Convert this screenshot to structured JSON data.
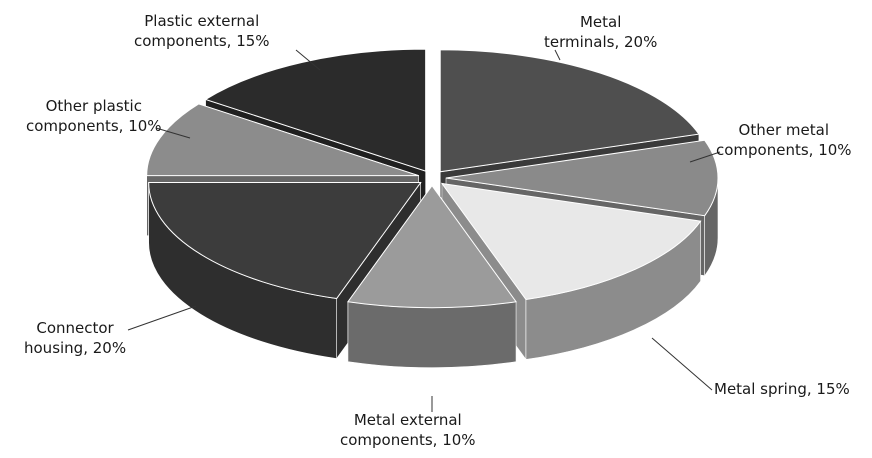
{
  "chart_data": {
    "type": "pie",
    "title": "",
    "series": [
      {
        "name": "Metal terminals",
        "lines": [
          "Metal",
          "terminals, 20%"
        ],
        "value": 20,
        "color": "#4f4f4f",
        "side": "#3a3a3a"
      },
      {
        "name": "Other metal components",
        "lines": [
          "Other metal",
          "components, 10%"
        ],
        "value": 10,
        "color": "#8a8a8a",
        "side": "#666666"
      },
      {
        "name": "Metal spring",
        "lines": [
          "Metal spring, 15%"
        ],
        "value": 15,
        "color": "#e8e8e8",
        "side": "#8c8c8c"
      },
      {
        "name": "Metal external components",
        "lines": [
          "Metal external",
          "components, 10%"
        ],
        "value": 10,
        "color": "#9b9b9b",
        "side": "#6b6b6b"
      },
      {
        "name": "Connector housing",
        "lines": [
          "Connector",
          "housing, 20%"
        ],
        "value": 20,
        "color": "#3c3c3c",
        "side": "#2e2e2e"
      },
      {
        "name": "Other plastic components",
        "lines": [
          "Other plastic",
          "components, 10%"
        ],
        "value": 10,
        "color": "#8c8c8c",
        "side": "#676767"
      },
      {
        "name": "Plastic external components",
        "lines": [
          "Plastic external",
          "components, 15%"
        ],
        "value": 15,
        "color": "#2b2b2b",
        "side": "#202020"
      }
    ],
    "legend": "none",
    "style": "3d-exploded"
  }
}
